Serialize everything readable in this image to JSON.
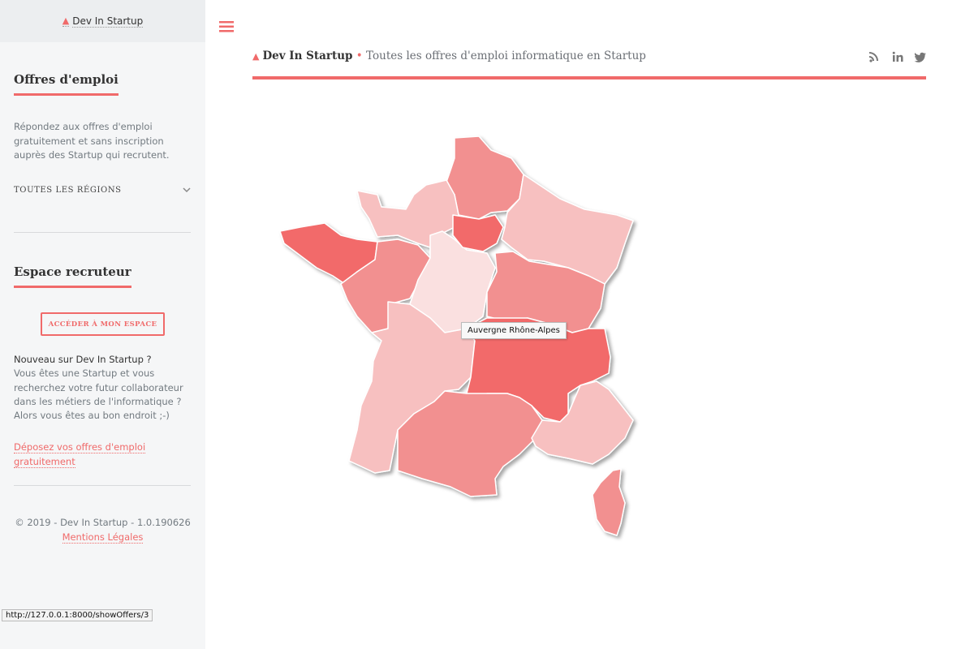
{
  "sidebar": {
    "brand": "Dev In Startup",
    "offers": {
      "title": "Offres d'emploi",
      "text": "Répondez aux offres d'emploi gratuitement et sans inscription auprès des Startup qui recrutent.",
      "select": "TOUTES LES RÉGIONS"
    },
    "recruiter": {
      "title": "Espace recruteur",
      "button": "ACCÉDER À MON ESPACE",
      "intro": "Nouveau sur Dev In Startup ?",
      "text": "Vous êtes une Startup et vous recherchez votre futur collaborateur dans les métiers de l'informatique ?",
      "text2": "Alors vous êtes au bon endroit ;-)",
      "link": "Déposez vos offres d'emploi gratuitement"
    },
    "footer": {
      "copyright": "© 2019 - Dev In Startup - 1.0.190626",
      "legal": "Mentions Légales"
    }
  },
  "header": {
    "brand": "Dev In Startup",
    "separator": "•",
    "tagline": "Toutes les offres d'emploi informatique en Startup"
  },
  "map": {
    "tooltip": "Auvergne Rhône-Alpes"
  },
  "status_bar": "http://127.0.0.1:8000/showOffers/3"
}
